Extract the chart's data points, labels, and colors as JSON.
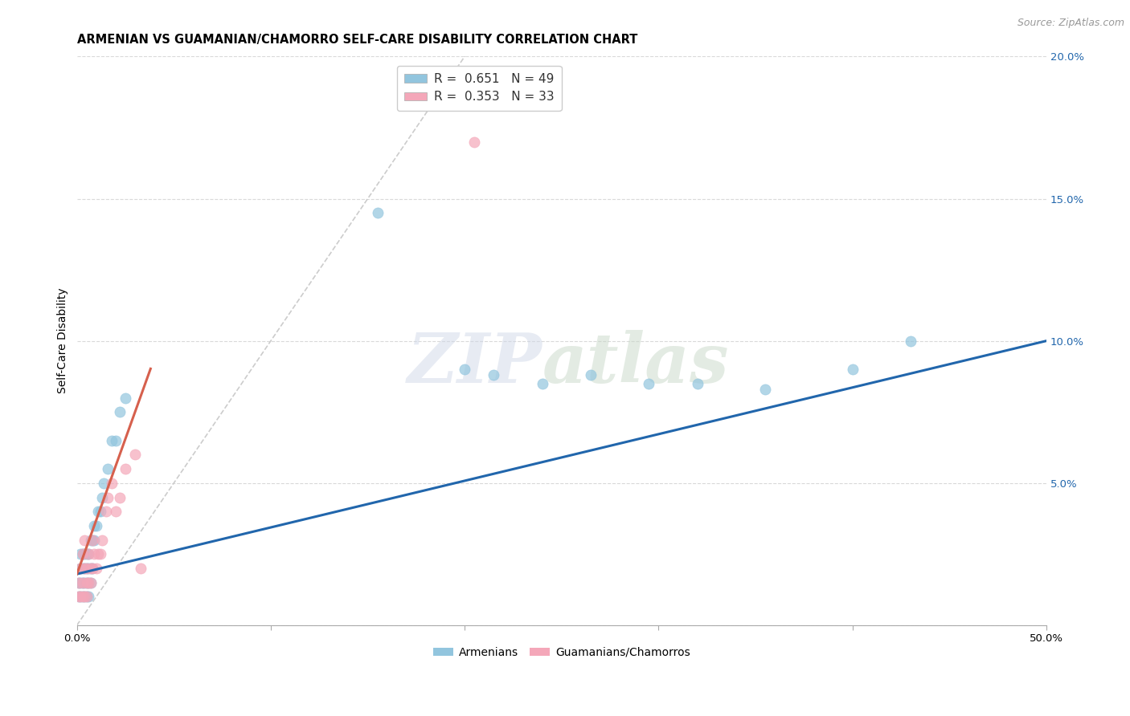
{
  "title": "ARMENIAN VS GUAMANIAN/CHAMORRO SELF-CARE DISABILITY CORRELATION CHART",
  "source": "Source: ZipAtlas.com",
  "xlabel": "",
  "ylabel": "Self-Care Disability",
  "xlim": [
    0.0,
    0.5
  ],
  "ylim": [
    0.0,
    0.2
  ],
  "xticks": [
    0.0,
    0.1,
    0.2,
    0.3,
    0.4,
    0.5
  ],
  "xticklabels": [
    "0.0%",
    "",
    "",
    "",
    "",
    "50.0%"
  ],
  "yticks": [
    0.0,
    0.05,
    0.1,
    0.15,
    0.2
  ],
  "yticklabels": [
    "",
    "",
    "",
    "",
    ""
  ],
  "right_ytick_labels": [
    "",
    "5.0%",
    "10.0%",
    "15.0%",
    "20.0%"
  ],
  "armenian_R": 0.651,
  "armenian_N": 49,
  "guamanian_R": 0.353,
  "guamanian_N": 33,
  "armenian_color": "#92c5de",
  "guamanian_color": "#f4a7b9",
  "regression_line_color_armenian": "#2166ac",
  "regression_line_color_guamanian": "#d6604d",
  "diagonal_line_color": "#cccccc",
  "background_color": "#ffffff",
  "grid_color": "#d9d9d9",
  "watermark_zip": "ZIP",
  "watermark_atlas": "atlas",
  "armenians_x": [
    0.001,
    0.001,
    0.002,
    0.002,
    0.002,
    0.002,
    0.003,
    0.003,
    0.003,
    0.003,
    0.004,
    0.004,
    0.004,
    0.004,
    0.005,
    0.005,
    0.005,
    0.005,
    0.006,
    0.006,
    0.006,
    0.006,
    0.007,
    0.007,
    0.007,
    0.008,
    0.008,
    0.009,
    0.009,
    0.01,
    0.011,
    0.012,
    0.013,
    0.014,
    0.016,
    0.018,
    0.02,
    0.022,
    0.025,
    0.155,
    0.2,
    0.215,
    0.24,
    0.265,
    0.295,
    0.32,
    0.355,
    0.4,
    0.43
  ],
  "armenians_y": [
    0.01,
    0.015,
    0.01,
    0.015,
    0.02,
    0.025,
    0.01,
    0.015,
    0.02,
    0.025,
    0.01,
    0.015,
    0.02,
    0.025,
    0.01,
    0.015,
    0.02,
    0.025,
    0.01,
    0.015,
    0.02,
    0.025,
    0.015,
    0.02,
    0.03,
    0.02,
    0.03,
    0.03,
    0.035,
    0.035,
    0.04,
    0.04,
    0.045,
    0.05,
    0.055,
    0.065,
    0.065,
    0.075,
    0.08,
    0.145,
    0.09,
    0.088,
    0.085,
    0.088,
    0.085,
    0.085,
    0.083,
    0.09,
    0.1
  ],
  "guamanians_x": [
    0.001,
    0.001,
    0.002,
    0.002,
    0.003,
    0.003,
    0.003,
    0.004,
    0.004,
    0.004,
    0.005,
    0.005,
    0.005,
    0.006,
    0.006,
    0.007,
    0.007,
    0.008,
    0.008,
    0.009,
    0.01,
    0.011,
    0.012,
    0.013,
    0.015,
    0.016,
    0.018,
    0.02,
    0.022,
    0.025,
    0.03,
    0.033,
    0.205
  ],
  "guamanians_y": [
    0.01,
    0.015,
    0.01,
    0.02,
    0.01,
    0.015,
    0.025,
    0.01,
    0.02,
    0.03,
    0.01,
    0.015,
    0.02,
    0.015,
    0.025,
    0.015,
    0.02,
    0.02,
    0.03,
    0.025,
    0.02,
    0.025,
    0.025,
    0.03,
    0.04,
    0.045,
    0.05,
    0.04,
    0.045,
    0.055,
    0.06,
    0.02,
    0.17
  ],
  "title_fontsize": 10.5,
  "label_fontsize": 10,
  "tick_fontsize": 9.5,
  "legend_fontsize": 11
}
